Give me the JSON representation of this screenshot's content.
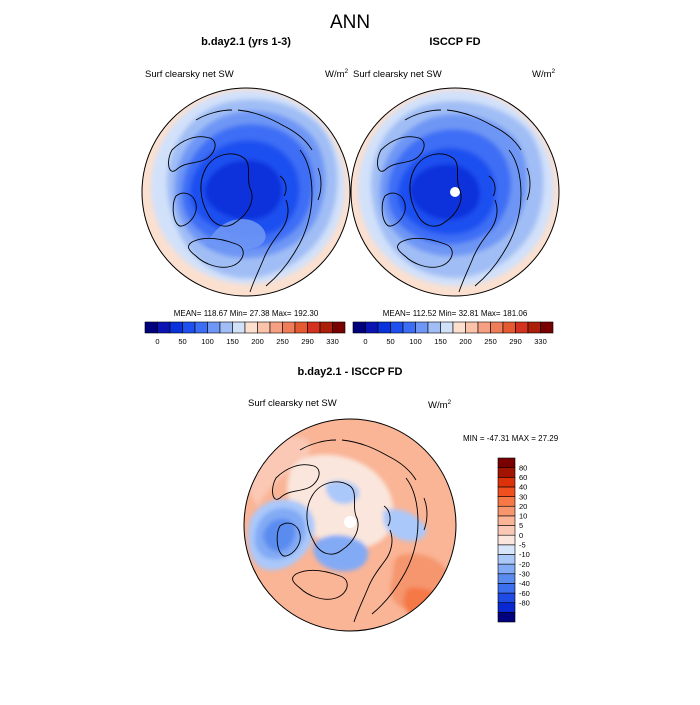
{
  "chart_data": {
    "type": "heatmap",
    "title": "ANN",
    "panels": [
      {
        "id": "model",
        "case_title": "b.day2.1 (yrs 1-3)",
        "variable": "Surf clearsky net SW",
        "units_base": "W/m",
        "units_exp": "2",
        "stats": "MEAN= 118.67  Min=  27.38  Max= 192.30",
        "mean": 118.67,
        "min": 27.38,
        "max": 192.3
      },
      {
        "id": "obs",
        "case_title": "ISCCP FD",
        "variable": "Surf clearsky net SW",
        "units_base": "W/m",
        "units_exp": "2",
        "stats": "MEAN= 112.52  Min=  32.81  Max= 181.06",
        "mean": 112.52,
        "min": 32.81,
        "max": 181.06
      },
      {
        "id": "diff",
        "case_title": "b.day2.1 - ISCCP FD",
        "variable": "Surf clearsky net SW",
        "units_base": "W/m",
        "units_exp": "2",
        "stats": "MIN = -47.31 MAX =  27.29",
        "min": -47.31,
        "max": 27.29
      }
    ],
    "field_colorbar": {
      "orientation": "horizontal",
      "colors": [
        "#00007f",
        "#0a14b4",
        "#0a32dc",
        "#1e50f0",
        "#3c6ef5",
        "#6e96f5",
        "#a0bef5",
        "#d2e1fa",
        "#fbe0d0",
        "#fac3aa",
        "#f5a082",
        "#f07d5a",
        "#e65a32",
        "#d2321e",
        "#aa1e0a",
        "#780000"
      ],
      "ticks": [
        "0",
        "50",
        "100",
        "150",
        "200",
        "250",
        "290",
        "330"
      ]
    },
    "diff_colorbar": {
      "orientation": "vertical",
      "colors": [
        "#00007f",
        "#0a28d2",
        "#1e4be6",
        "#3c6ef0",
        "#5a8cf0",
        "#82aaf5",
        "#aac8fa",
        "#d7e6fa",
        "#fae6dc",
        "#fac8b4",
        "#fab496",
        "#f5966e",
        "#f57846",
        "#f0501e",
        "#dc320a",
        "#a01400",
        "#780000"
      ],
      "ticks": [
        "80",
        "60",
        "40",
        "30",
        "20",
        "10",
        "5",
        "0",
        "-5",
        "-10",
        "-20",
        "-30",
        "-40",
        "-60",
        "-80"
      ]
    }
  }
}
